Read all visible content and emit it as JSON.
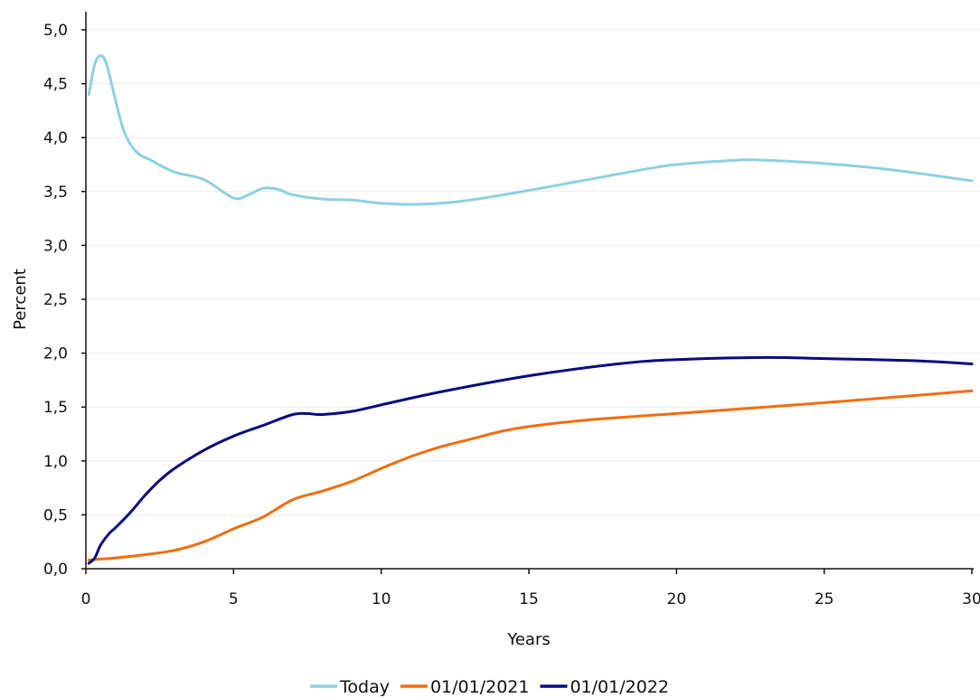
{
  "chart_data": {
    "type": "line",
    "title": "",
    "xlabel": "Years",
    "ylabel": "Percent",
    "xlim": [
      0,
      30
    ],
    "ylim": [
      0,
      5
    ],
    "x_ticks": [
      0,
      5,
      10,
      15,
      20,
      25,
      30
    ],
    "x_tick_labels": [
      "0",
      "5",
      "10",
      "15",
      "20",
      "25",
      "30"
    ],
    "y_ticks": [
      0,
      0.5,
      1,
      1.5,
      2,
      2.5,
      3,
      3.5,
      4,
      4.5,
      5
    ],
    "y_tick_labels": [
      "0,0",
      "0,5",
      "1,0",
      "1,5",
      "2,0",
      "2,5",
      "3,0",
      "3,5",
      "4,0",
      "4,5",
      "5,0"
    ],
    "grid": "horizontal",
    "legend_position": "bottom",
    "series": [
      {
        "name": "Today",
        "color": "#8fd0e0",
        "points": [
          [
            0.1,
            4.4
          ],
          [
            0.3,
            4.68
          ],
          [
            0.5,
            4.76
          ],
          [
            0.7,
            4.68
          ],
          [
            1.0,
            4.35
          ],
          [
            1.3,
            4.05
          ],
          [
            1.7,
            3.87
          ],
          [
            2.2,
            3.79
          ],
          [
            3.0,
            3.68
          ],
          [
            4.0,
            3.61
          ],
          [
            5.0,
            3.44
          ],
          [
            5.5,
            3.47
          ],
          [
            6.0,
            3.53
          ],
          [
            6.5,
            3.52
          ],
          [
            7.0,
            3.47
          ],
          [
            8.0,
            3.43
          ],
          [
            9.0,
            3.42
          ],
          [
            10.0,
            3.39
          ],
          [
            11.0,
            3.38
          ],
          [
            12.0,
            3.39
          ],
          [
            13.0,
            3.42
          ],
          [
            15.0,
            3.51
          ],
          [
            17.0,
            3.61
          ],
          [
            19.0,
            3.71
          ],
          [
            20.0,
            3.75
          ],
          [
            22.0,
            3.79
          ],
          [
            23.0,
            3.79
          ],
          [
            25.0,
            3.76
          ],
          [
            27.0,
            3.71
          ],
          [
            30.0,
            3.6
          ]
        ]
      },
      {
        "name": "01/01/2021",
        "color": "#f26d0f",
        "points": [
          [
            0.1,
            0.08
          ],
          [
            0.5,
            0.09
          ],
          [
            1.0,
            0.1
          ],
          [
            2.0,
            0.13
          ],
          [
            3.0,
            0.17
          ],
          [
            4.0,
            0.25
          ],
          [
            5.0,
            0.37
          ],
          [
            6.0,
            0.48
          ],
          [
            7.0,
            0.64
          ],
          [
            8.0,
            0.72
          ],
          [
            9.0,
            0.81
          ],
          [
            10.0,
            0.93
          ],
          [
            11.0,
            1.04
          ],
          [
            12.0,
            1.13
          ],
          [
            13.0,
            1.2
          ],
          [
            14.0,
            1.27
          ],
          [
            15.0,
            1.32
          ],
          [
            17.0,
            1.38
          ],
          [
            20.0,
            1.44
          ],
          [
            25.0,
            1.54
          ],
          [
            30.0,
            1.65
          ]
        ]
      },
      {
        "name": "01/01/2022",
        "color": "#0a0a82",
        "points": [
          [
            0.1,
            0.05
          ],
          [
            0.3,
            0.1
          ],
          [
            0.5,
            0.22
          ],
          [
            0.8,
            0.33
          ],
          [
            1.0,
            0.38
          ],
          [
            1.5,
            0.52
          ],
          [
            2.0,
            0.68
          ],
          [
            2.5,
            0.82
          ],
          [
            3.0,
            0.93
          ],
          [
            4.0,
            1.1
          ],
          [
            5.0,
            1.23
          ],
          [
            6.0,
            1.33
          ],
          [
            7.0,
            1.43
          ],
          [
            7.5,
            1.44
          ],
          [
            8.0,
            1.43
          ],
          [
            9.0,
            1.46
          ],
          [
            10.0,
            1.52
          ],
          [
            12.0,
            1.64
          ],
          [
            15.0,
            1.79
          ],
          [
            18.0,
            1.9
          ],
          [
            20.0,
            1.94
          ],
          [
            23.0,
            1.96
          ],
          [
            25.0,
            1.95
          ],
          [
            28.0,
            1.93
          ],
          [
            30.0,
            1.9
          ]
        ]
      }
    ]
  }
}
